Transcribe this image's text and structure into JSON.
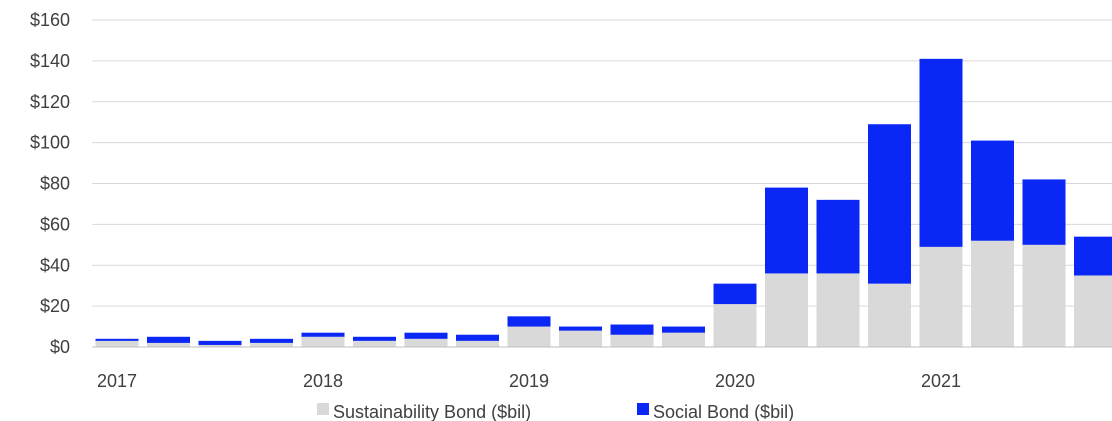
{
  "chart_data": {
    "type": "bar",
    "stacked": true,
    "title": "",
    "xlabel": "",
    "ylabel": "",
    "ylim": [
      0,
      160
    ],
    "y_ticks": [
      "$0",
      "$20",
      "$40",
      "$60",
      "$80",
      "$100",
      "$120",
      "$140",
      "$160"
    ],
    "y_tick_values": [
      0,
      20,
      40,
      60,
      80,
      100,
      120,
      140,
      160
    ],
    "x_tick_labels": [
      {
        "label": "2017",
        "category_index": 0
      },
      {
        "label": "2018",
        "category_index": 4
      },
      {
        "label": "2019",
        "category_index": 8
      },
      {
        "label": "2020",
        "category_index": 12
      },
      {
        "label": "2021",
        "category_index": 16
      }
    ],
    "categories": [
      "2017 Q1",
      "2017 Q2",
      "2017 Q3",
      "2017 Q4",
      "2018 Q1",
      "2018 Q2",
      "2018 Q3",
      "2018 Q4",
      "2019 Q1",
      "2019 Q2",
      "2019 Q3",
      "2019 Q4",
      "2020 Q1",
      "2020 Q2",
      "2020 Q3",
      "2020 Q4",
      "2021 Q1",
      "2021 Q2",
      "2021 Q3",
      "2021 Q4"
    ],
    "grid": true,
    "legend": "bottom",
    "series": [
      {
        "name": "Sustainability Bond ($bil)",
        "color": "#d9d9d9",
        "values": [
          3,
          2,
          1,
          2,
          5,
          3,
          4,
          3,
          10,
          8,
          6,
          7,
          21,
          36,
          36,
          31,
          49,
          52,
          50,
          35
        ]
      },
      {
        "name": "Social Bond ($bil)",
        "color": "#0a27f5",
        "values": [
          1,
          3,
          2,
          2,
          2,
          2,
          3,
          3,
          5,
          2,
          5,
          3,
          10,
          42,
          36,
          78,
          92,
          49,
          32,
          19
        ]
      }
    ]
  }
}
